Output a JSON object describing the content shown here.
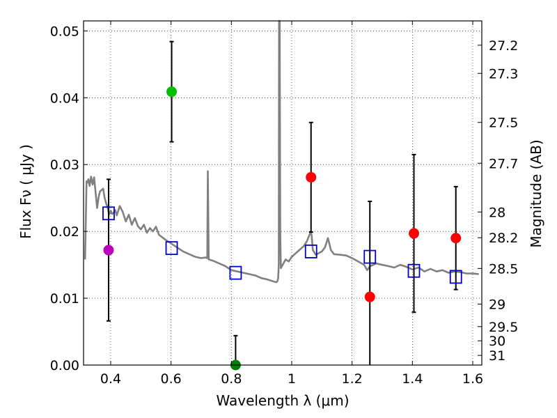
{
  "chart_data": {
    "type": "scatter",
    "xlabel": "Wavelength  λ (μm)",
    "ylabel": "Flux  Fν  ( μJy )",
    "ylabel_right": "Magnitude (AB)",
    "xlim": [
      0.31,
      1.63
    ],
    "ylim": [
      0.0,
      0.0515
    ],
    "grid": true,
    "x_ticks": [
      0.4,
      0.6,
      0.8,
      1.0,
      1.2,
      1.4,
      1.6
    ],
    "x_tick_labels": [
      "0.4",
      "0.6",
      "0.8",
      "1",
      "1.2",
      "1.4",
      "1.6"
    ],
    "y_ticks": [
      0.0,
      0.01,
      0.02,
      0.03,
      0.04,
      0.05
    ],
    "y_tick_labels": [
      "0.00",
      "0.01",
      "0.02",
      "0.03",
      "0.04",
      "0.05"
    ],
    "mag_ticks": [
      "27.2",
      "27.3",
      "27.5",
      "27.7",
      "28",
      "28.2",
      "28.5",
      "29",
      "29.5",
      "30",
      "31"
    ],
    "observed": [
      {
        "x": 0.393,
        "y": 0.0172,
        "err": 0.0106,
        "color": "#bf00bf"
      },
      {
        "x": 0.602,
        "y": 0.0409,
        "err": 0.0075,
        "color": "#00bf00"
      },
      {
        "x": 0.814,
        "y": 0.0,
        "err": 0.0044,
        "color": "#008000"
      },
      {
        "x": 1.064,
        "y": 0.0281,
        "err": 0.0082,
        "color": "#ff0000"
      },
      {
        "x": 1.259,
        "y": 0.0102,
        "err": 0.0143,
        "color": "#ff0000"
      },
      {
        "x": 1.405,
        "y": 0.0197,
        "err": 0.0118,
        "color": "#ff0000"
      },
      {
        "x": 1.544,
        "y": 0.019,
        "err": 0.0077,
        "color": "#ff0000"
      }
    ],
    "model_points": {
      "x": [
        0.393,
        0.602,
        0.814,
        1.064,
        1.259,
        1.405,
        1.544
      ],
      "y": [
        0.0227,
        0.0175,
        0.0138,
        0.017,
        0.0162,
        0.0141,
        0.0132
      ],
      "color": "#0000cc"
    },
    "spectrum": {
      "color": "#808080",
      "x": [
        0.315,
        0.32,
        0.323,
        0.326,
        0.33,
        0.335,
        0.34,
        0.345,
        0.35,
        0.355,
        0.36,
        0.365,
        0.37,
        0.375,
        0.38,
        0.385,
        0.39,
        0.395,
        0.4,
        0.405,
        0.41,
        0.415,
        0.42,
        0.43,
        0.44,
        0.45,
        0.46,
        0.47,
        0.48,
        0.49,
        0.5,
        0.51,
        0.52,
        0.53,
        0.54,
        0.55,
        0.56,
        0.58,
        0.6,
        0.62,
        0.64,
        0.66,
        0.68,
        0.7,
        0.715,
        0.718,
        0.72,
        0.722,
        0.725,
        0.74,
        0.76,
        0.78,
        0.8,
        0.82,
        0.84,
        0.86,
        0.88,
        0.9,
        0.92,
        0.94,
        0.95,
        0.953,
        0.955,
        0.957,
        0.958,
        0.96,
        0.962,
        0.964,
        0.97,
        0.98,
        0.99,
        1.0,
        1.02,
        1.04,
        1.05,
        1.06,
        1.063,
        1.066,
        1.07,
        1.08,
        1.1,
        1.11,
        1.12,
        1.13,
        1.14,
        1.16,
        1.18,
        1.2,
        1.22,
        1.24,
        1.25,
        1.26,
        1.28,
        1.3,
        1.32,
        1.34,
        1.36,
        1.38,
        1.4,
        1.42,
        1.44,
        1.46,
        1.48,
        1.5,
        1.52,
        1.54,
        1.56,
        1.58,
        1.6,
        1.62
      ],
      "y": [
        0.0158,
        0.0275,
        0.0273,
        0.0278,
        0.0268,
        0.0282,
        0.027,
        0.0281,
        0.0258,
        0.0235,
        0.0252,
        0.026,
        0.0262,
        0.0264,
        0.025,
        0.0242,
        0.0235,
        0.0225,
        0.0231,
        0.0226,
        0.0228,
        0.0232,
        0.0224,
        0.0238,
        0.0229,
        0.0215,
        0.0225,
        0.021,
        0.022,
        0.0208,
        0.0203,
        0.021,
        0.0198,
        0.0205,
        0.02,
        0.0207,
        0.0195,
        0.0188,
        0.0182,
        0.0176,
        0.017,
        0.0166,
        0.0162,
        0.016,
        0.0161,
        0.016,
        0.016,
        0.029,
        0.0158,
        0.0156,
        0.0152,
        0.0148,
        0.0142,
        0.014,
        0.0138,
        0.0136,
        0.0134,
        0.013,
        0.0128,
        0.0125,
        0.0124,
        0.0126,
        0.013,
        0.015,
        0.0515,
        0.0515,
        0.02,
        0.0145,
        0.015,
        0.0158,
        0.0155,
        0.0162,
        0.017,
        0.0178,
        0.0185,
        0.0196,
        0.02,
        0.0194,
        0.0172,
        0.0165,
        0.017,
        0.0176,
        0.019,
        0.0172,
        0.0166,
        0.0165,
        0.0164,
        0.016,
        0.0155,
        0.015,
        0.0142,
        0.0148,
        0.0152,
        0.015,
        0.0148,
        0.0146,
        0.015,
        0.0147,
        0.0143,
        0.0146,
        0.014,
        0.0144,
        0.014,
        0.0142,
        0.0138,
        0.014,
        0.0139,
        0.0137,
        0.0137,
        0.0136
      ]
    }
  }
}
